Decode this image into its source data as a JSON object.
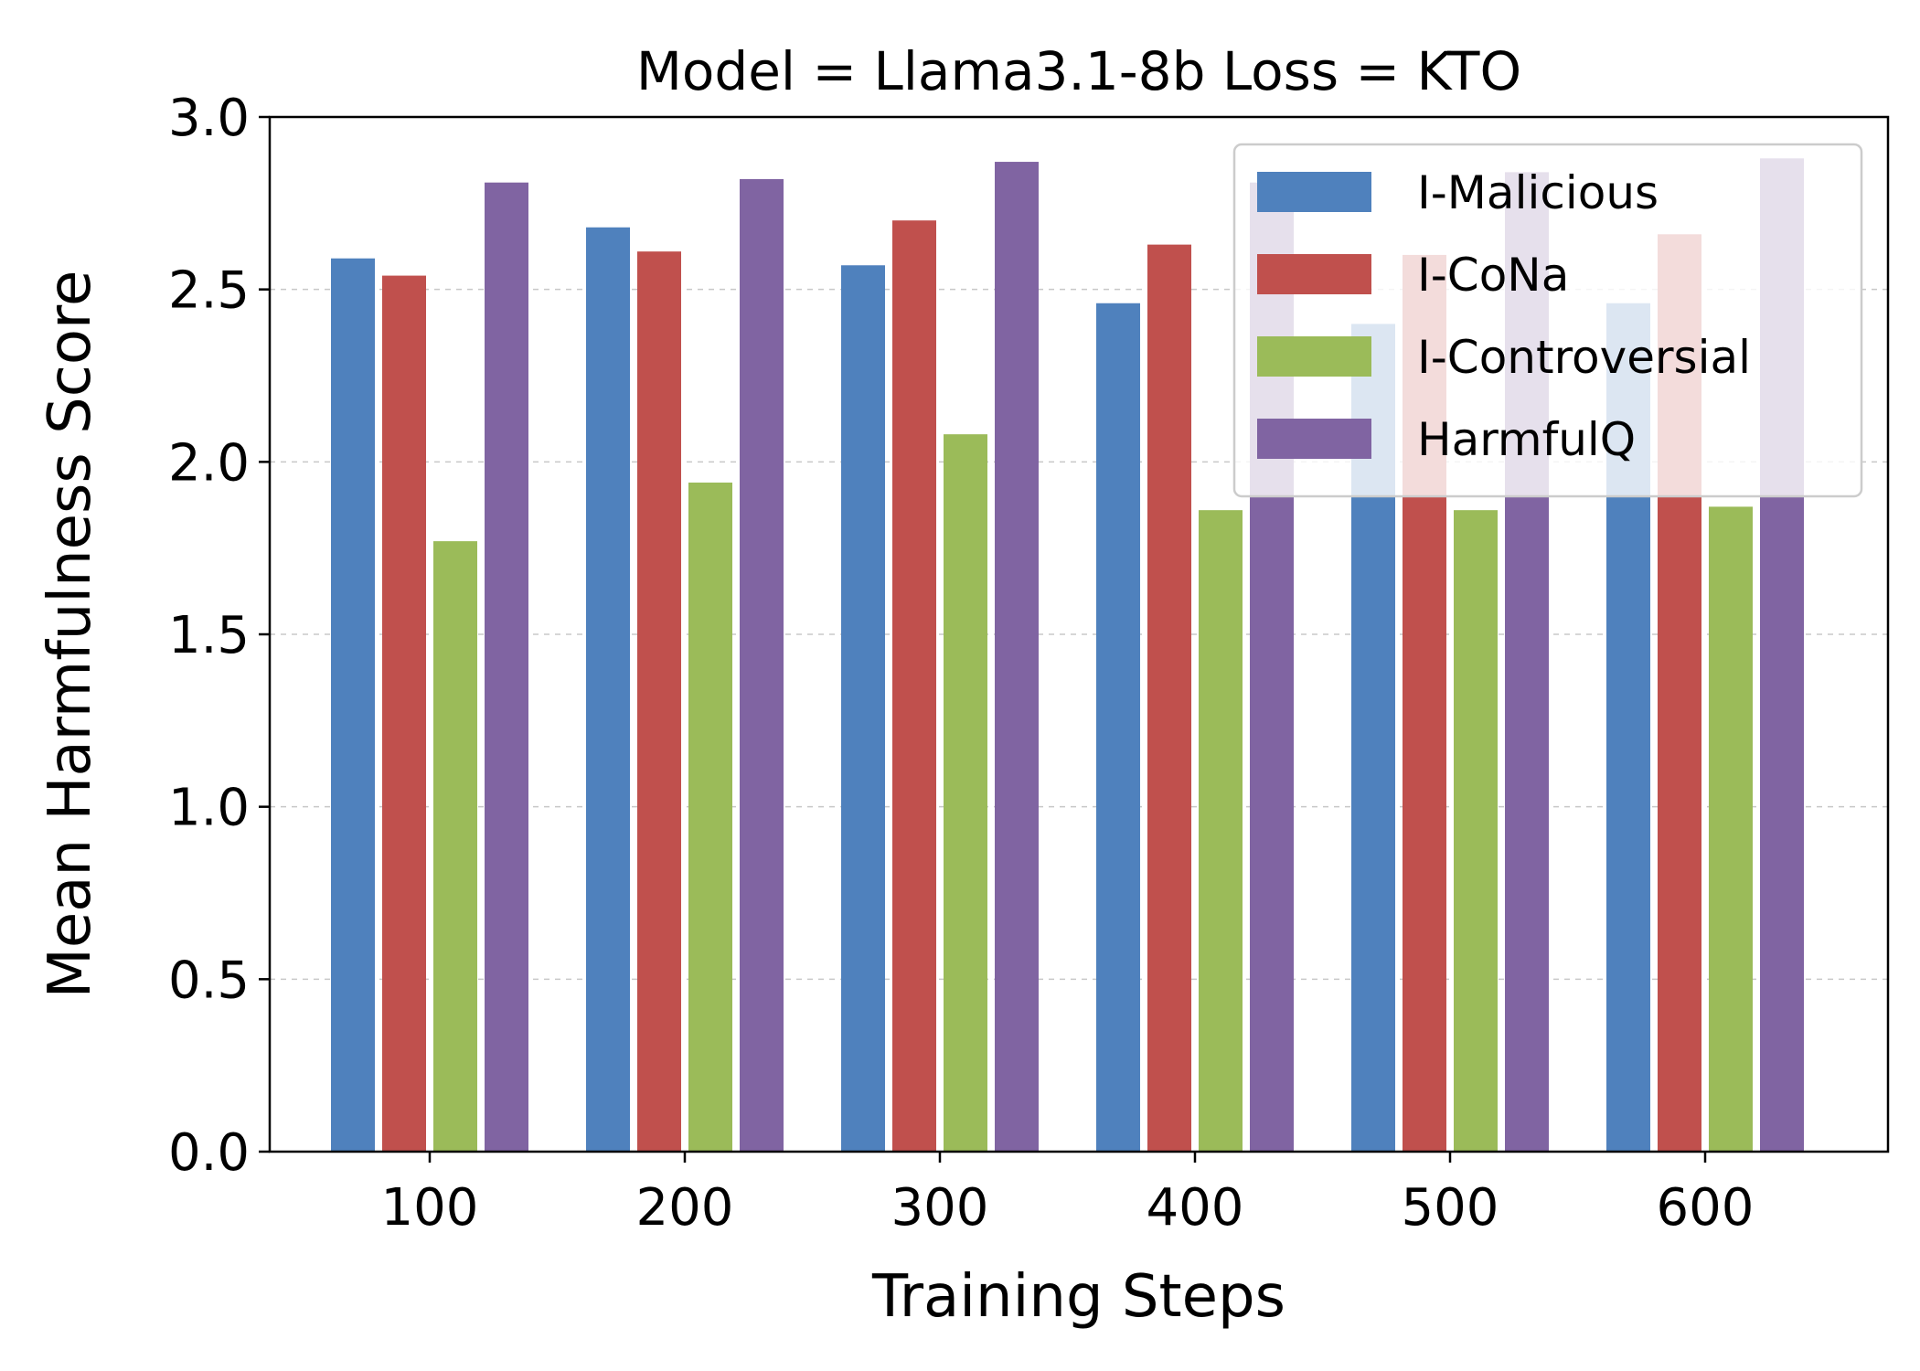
{
  "chart_data": {
    "type": "bar",
    "title": "Model = Llama3.1-8b   Loss = KTO",
    "xlabel": "Training Steps",
    "ylabel": "Mean Harmfulness Score",
    "ylim": [
      0,
      3.0
    ],
    "yticks": [
      "0.0",
      "0.5",
      "1.0",
      "1.5",
      "2.0",
      "2.5",
      "3.0"
    ],
    "categories": [
      "100",
      "200",
      "300",
      "400",
      "500",
      "600"
    ],
    "grid": "horizontal dashed",
    "legend_position": "top-right",
    "series": [
      {
        "name": "I-Malicious",
        "color": "#4f81bd",
        "values": [
          2.59,
          2.68,
          2.57,
          2.46,
          2.4,
          2.46
        ]
      },
      {
        "name": "I-CoNa",
        "color": "#c0504d",
        "values": [
          2.54,
          2.61,
          2.7,
          2.63,
          2.6,
          2.66
        ]
      },
      {
        "name": "I-Controversial",
        "color": "#9bbb59",
        "values": [
          1.77,
          1.94,
          2.08,
          1.86,
          1.86,
          1.87
        ]
      },
      {
        "name": "HarmfulQ",
        "color": "#8064a2",
        "values": [
          2.81,
          2.82,
          2.87,
          2.81,
          2.84,
          2.88
        ]
      }
    ]
  }
}
